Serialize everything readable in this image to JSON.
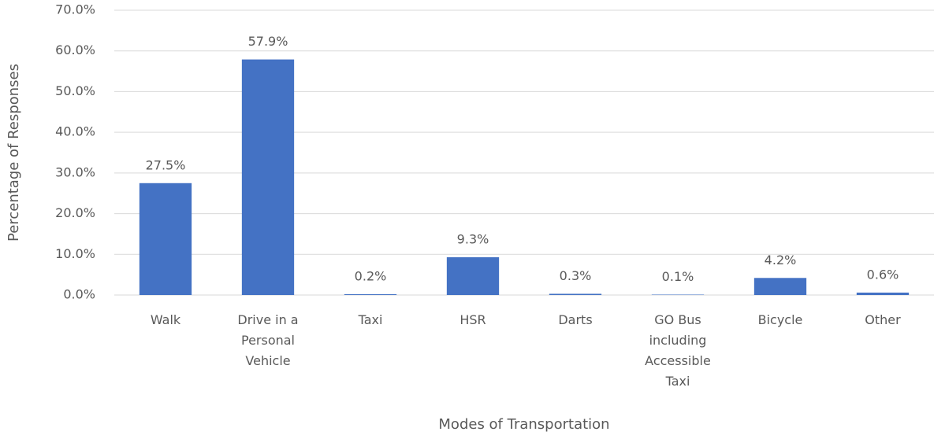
{
  "chart_data": {
    "type": "bar",
    "x_label": "Modes of Transportation",
    "y_label": "Percentage of Responses",
    "categories": [
      "Walk",
      "Drive in a Personal Vehicle",
      "Taxi",
      "HSR",
      "Darts",
      "GO Bus including Accessible Taxi",
      "Bicycle",
      "Other"
    ],
    "values": [
      27.5,
      57.9,
      0.2,
      9.3,
      0.3,
      0.1,
      4.2,
      0.6
    ],
    "value_labels": [
      "27.5%",
      "57.9%",
      "0.2%",
      "9.3%",
      "0.3%",
      "0.1%",
      "4.2%",
      "0.6%"
    ],
    "color": "#4472c4",
    "ylim": [
      0,
      70
    ],
    "yticks": [
      {
        "value": 0,
        "label": "0.0%"
      },
      {
        "value": 10,
        "label": "10.0%"
      },
      {
        "value": 20,
        "label": "20.0%"
      },
      {
        "value": 30,
        "label": "30.0%"
      },
      {
        "value": 40,
        "label": "40.0%"
      },
      {
        "value": 50,
        "label": "50.0%"
      },
      {
        "value": 60,
        "label": "60.0%"
      },
      {
        "value": 70,
        "label": "70.0%"
      }
    ],
    "grid": true
  }
}
